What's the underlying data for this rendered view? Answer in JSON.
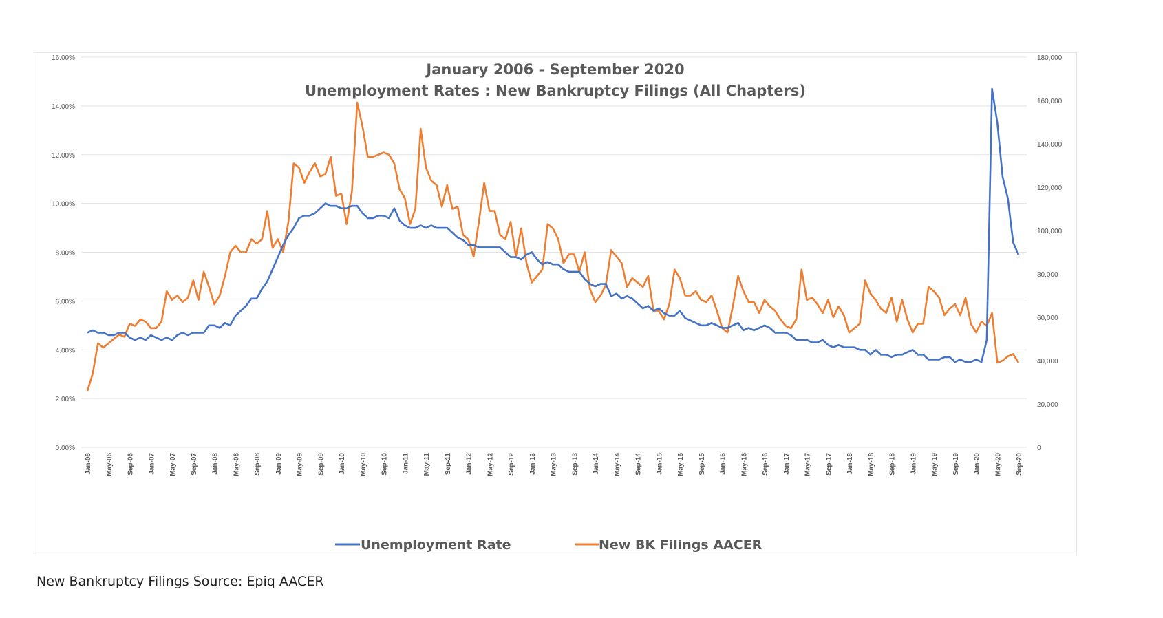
{
  "chart_data": {
    "type": "line",
    "title_line1": "January 2006 - September 2020",
    "title_line2": "Unemployment Rates : New Bankruptcy Filings (All Chapters)",
    "x_range": [
      "Jan-06",
      "Sep-20"
    ],
    "x_interval": "monthly",
    "x_tick_labels": [
      "Jan-06",
      "May-06",
      "Sep-06",
      "Jan-07",
      "May-07",
      "Sep-07",
      "Jan-08",
      "May-08",
      "Sep-08",
      "Jan-09",
      "May-09",
      "Sep-09",
      "Jan-10",
      "May-10",
      "Sep-10",
      "Jan-11",
      "May-11",
      "Sep-11",
      "Jan-12",
      "May-12",
      "Sep-12",
      "Jan-13",
      "May-13",
      "Sep-13",
      "Jan-14",
      "May-14",
      "Sep-14",
      "Jan-15",
      "May-15",
      "Sep-15",
      "Jan-16",
      "May-16",
      "Sep-16",
      "Jan-17",
      "May-17",
      "Sep-17",
      "Jan-18",
      "May-18",
      "Sep-18",
      "Jan-19",
      "May-19",
      "Sep-19",
      "Jan-20",
      "May-20",
      "Sep-20"
    ],
    "y_left": {
      "range": [
        0,
        16
      ],
      "unit": "percent",
      "tick_labels": [
        "0.00%",
        "2.00%",
        "4.00%",
        "6.00%",
        "8.00%",
        "10.00%",
        "12.00%",
        "14.00%",
        "16.00%"
      ]
    },
    "y_right": {
      "range": [
        0,
        180000
      ],
      "tick_labels": [
        "0",
        "20,000",
        "40,000",
        "60,000",
        "80,000",
        "100,000",
        "120,000",
        "140,000",
        "160,000",
        "180,000"
      ]
    },
    "grid": true,
    "legend_placement": "bottom",
    "series": [
      {
        "name": "Unemployment Rate",
        "axis": "left",
        "color": "#4472C4",
        "values": [
          4.7,
          4.8,
          4.7,
          4.7,
          4.6,
          4.6,
          4.7,
          4.7,
          4.5,
          4.4,
          4.5,
          4.4,
          4.6,
          4.5,
          4.4,
          4.5,
          4.4,
          4.6,
          4.7,
          4.6,
          4.7,
          4.7,
          4.7,
          5.0,
          5.0,
          4.9,
          5.1,
          5.0,
          5.4,
          5.6,
          5.8,
          6.1,
          6.1,
          6.5,
          6.8,
          7.3,
          7.8,
          8.3,
          8.7,
          9.0,
          9.4,
          9.5,
          9.5,
          9.6,
          9.8,
          10.0,
          9.9,
          9.9,
          9.8,
          9.8,
          9.9,
          9.9,
          9.6,
          9.4,
          9.4,
          9.5,
          9.5,
          9.4,
          9.8,
          9.3,
          9.1,
          9.0,
          9.0,
          9.1,
          9.0,
          9.1,
          9.0,
          9.0,
          9.0,
          8.8,
          8.6,
          8.5,
          8.3,
          8.3,
          8.2,
          8.2,
          8.2,
          8.2,
          8.2,
          8.0,
          7.8,
          7.8,
          7.7,
          7.9,
          8.0,
          7.7,
          7.5,
          7.6,
          7.5,
          7.5,
          7.3,
          7.2,
          7.2,
          7.2,
          6.9,
          6.7,
          6.6,
          6.7,
          6.7,
          6.2,
          6.3,
          6.1,
          6.2,
          6.1,
          5.9,
          5.7,
          5.8,
          5.6,
          5.7,
          5.5,
          5.4,
          5.4,
          5.6,
          5.3,
          5.2,
          5.1,
          5.0,
          5.0,
          5.1,
          5.0,
          4.9,
          4.9,
          5.0,
          5.1,
          4.8,
          4.9,
          4.8,
          4.9,
          5.0,
          4.9,
          4.7,
          4.7,
          4.7,
          4.6,
          4.4,
          4.4,
          4.4,
          4.3,
          4.3,
          4.4,
          4.2,
          4.1,
          4.2,
          4.1,
          4.1,
          4.1,
          4.0,
          4.0,
          3.8,
          4.0,
          3.8,
          3.8,
          3.7,
          3.8,
          3.8,
          3.9,
          4.0,
          3.8,
          3.8,
          3.6,
          3.6,
          3.6,
          3.7,
          3.7,
          3.5,
          3.6,
          3.5,
          3.5,
          3.6,
          3.5,
          4.4,
          14.7,
          13.3,
          11.1,
          10.2,
          8.4,
          7.9
        ]
      },
      {
        "name": "New BK Filings AACER",
        "axis": "right",
        "color": "#ED7D31",
        "values": [
          26000,
          34000,
          48000,
          46000,
          48000,
          50000,
          52000,
          51000,
          57000,
          56000,
          59000,
          58000,
          55000,
          55000,
          58000,
          72000,
          68000,
          70000,
          67000,
          69000,
          77000,
          68000,
          81000,
          74000,
          66000,
          70000,
          79000,
          90000,
          93000,
          90000,
          90000,
          96000,
          94000,
          96000,
          109000,
          92000,
          96000,
          90000,
          104000,
          131000,
          129000,
          122000,
          127000,
          131000,
          125000,
          126000,
          134000,
          116000,
          117000,
          103000,
          118000,
          159000,
          148000,
          134000,
          134000,
          135000,
          136000,
          135000,
          131000,
          119000,
          115000,
          103000,
          110000,
          147000,
          129000,
          123000,
          121000,
          111000,
          121000,
          110000,
          111000,
          98000,
          96000,
          88000,
          104000,
          122000,
          109000,
          109000,
          98000,
          96000,
          104000,
          88000,
          101000,
          85000,
          76000,
          79000,
          82000,
          103000,
          101000,
          96000,
          85000,
          89000,
          89000,
          81000,
          90000,
          73000,
          67000,
          70000,
          75000,
          91000,
          88000,
          85000,
          74000,
          78000,
          76000,
          74000,
          79000,
          63000,
          63000,
          59000,
          66000,
          82000,
          78000,
          70000,
          70000,
          72000,
          68000,
          67000,
          70000,
          63000,
          55000,
          53000,
          65000,
          79000,
          72000,
          67000,
          67000,
          62000,
          68000,
          65000,
          63000,
          59000,
          56000,
          55000,
          59000,
          82000,
          68000,
          69000,
          66000,
          62000,
          68000,
          60000,
          65000,
          61000,
          53000,
          55000,
          57000,
          77000,
          71000,
          68000,
          64000,
          62000,
          69000,
          58000,
          68000,
          59000,
          53000,
          57000,
          57000,
          74000,
          72000,
          69000,
          61000,
          64000,
          66000,
          61000,
          69000,
          57000,
          53000,
          58000,
          56000,
          62000,
          39000,
          40000,
          42000,
          43000,
          39000
        ]
      }
    ]
  },
  "footer": {
    "source": "New Bankruptcy Filings Source: Epiq AACER"
  }
}
